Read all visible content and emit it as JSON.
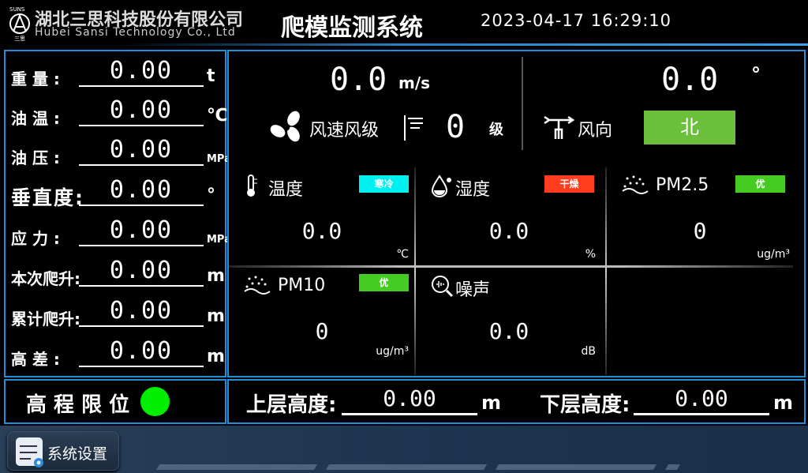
{
  "header": {
    "company_cn": "湖北三思科技股份有限公司",
    "company_en": "Hubei Sansi Technology Co., Ltd",
    "logo_text": "SUNS",
    "title": "爬模监测系统",
    "datetime": "2023-04-17 16:29:10"
  },
  "left": {
    "rows": [
      {
        "label": "重 量 :",
        "value": "0.00",
        "unit": "t"
      },
      {
        "label": "油 温 :",
        "value": "0.00",
        "unit": "℃"
      },
      {
        "label": "油 压 :",
        "value": "0.00",
        "unit": "MPa"
      },
      {
        "label": "垂直度:",
        "value": "0.00",
        "unit": "°"
      },
      {
        "label": "应 力 :",
        "value": "0.00",
        "unit": "MPa"
      },
      {
        "label": "本次爬升:",
        "value": "0.00",
        "unit": "m"
      },
      {
        "label": "累计爬升:",
        "value": "0.00",
        "unit": "m"
      },
      {
        "label": "高 差 :",
        "value": "0.00",
        "unit": "m"
      }
    ]
  },
  "wind": {
    "speed": "0.0",
    "speed_unit": "m/s",
    "speed_label": "风速风级",
    "level": "0",
    "level_unit": "级",
    "direction_value": "0.0",
    "direction_unit": "°",
    "direction_label": "风向",
    "direction": "北",
    "direction_color": "#6cbf3a"
  },
  "env": [
    {
      "label": "温度",
      "badge": "寒冷",
      "badge_color": "#00f0f0",
      "value": "0.0",
      "unit": "℃",
      "icon": "thermometer-icon"
    },
    {
      "label": "湿度",
      "badge": "干燥",
      "badge_color": "#ff3c1e",
      "value": "0.0",
      "unit": "%",
      "icon": "droplet-icon"
    },
    {
      "label": "PM2.5",
      "badge": "优",
      "badge_color": "#44cc22",
      "value": "0",
      "unit": "ug/m³",
      "icon": "dust-icon"
    },
    {
      "label": "PM10",
      "badge": "优",
      "badge_color": "#44cc22",
      "value": "0",
      "unit": "ug/m³",
      "icon": "dust-icon"
    },
    {
      "label": "噪声",
      "value": "0.0",
      "unit": "dB",
      "icon": "noise-icon"
    }
  ],
  "limit": {
    "label": "高 程 限 位",
    "status_color": "#00ee00"
  },
  "heights": {
    "upper_label": "上层高度:",
    "upper_value": "0.00",
    "upper_unit": "m",
    "lower_label": "下层高度:",
    "lower_value": "0.00",
    "lower_unit": "m"
  },
  "footer": {
    "settings_label": "系统设置"
  }
}
